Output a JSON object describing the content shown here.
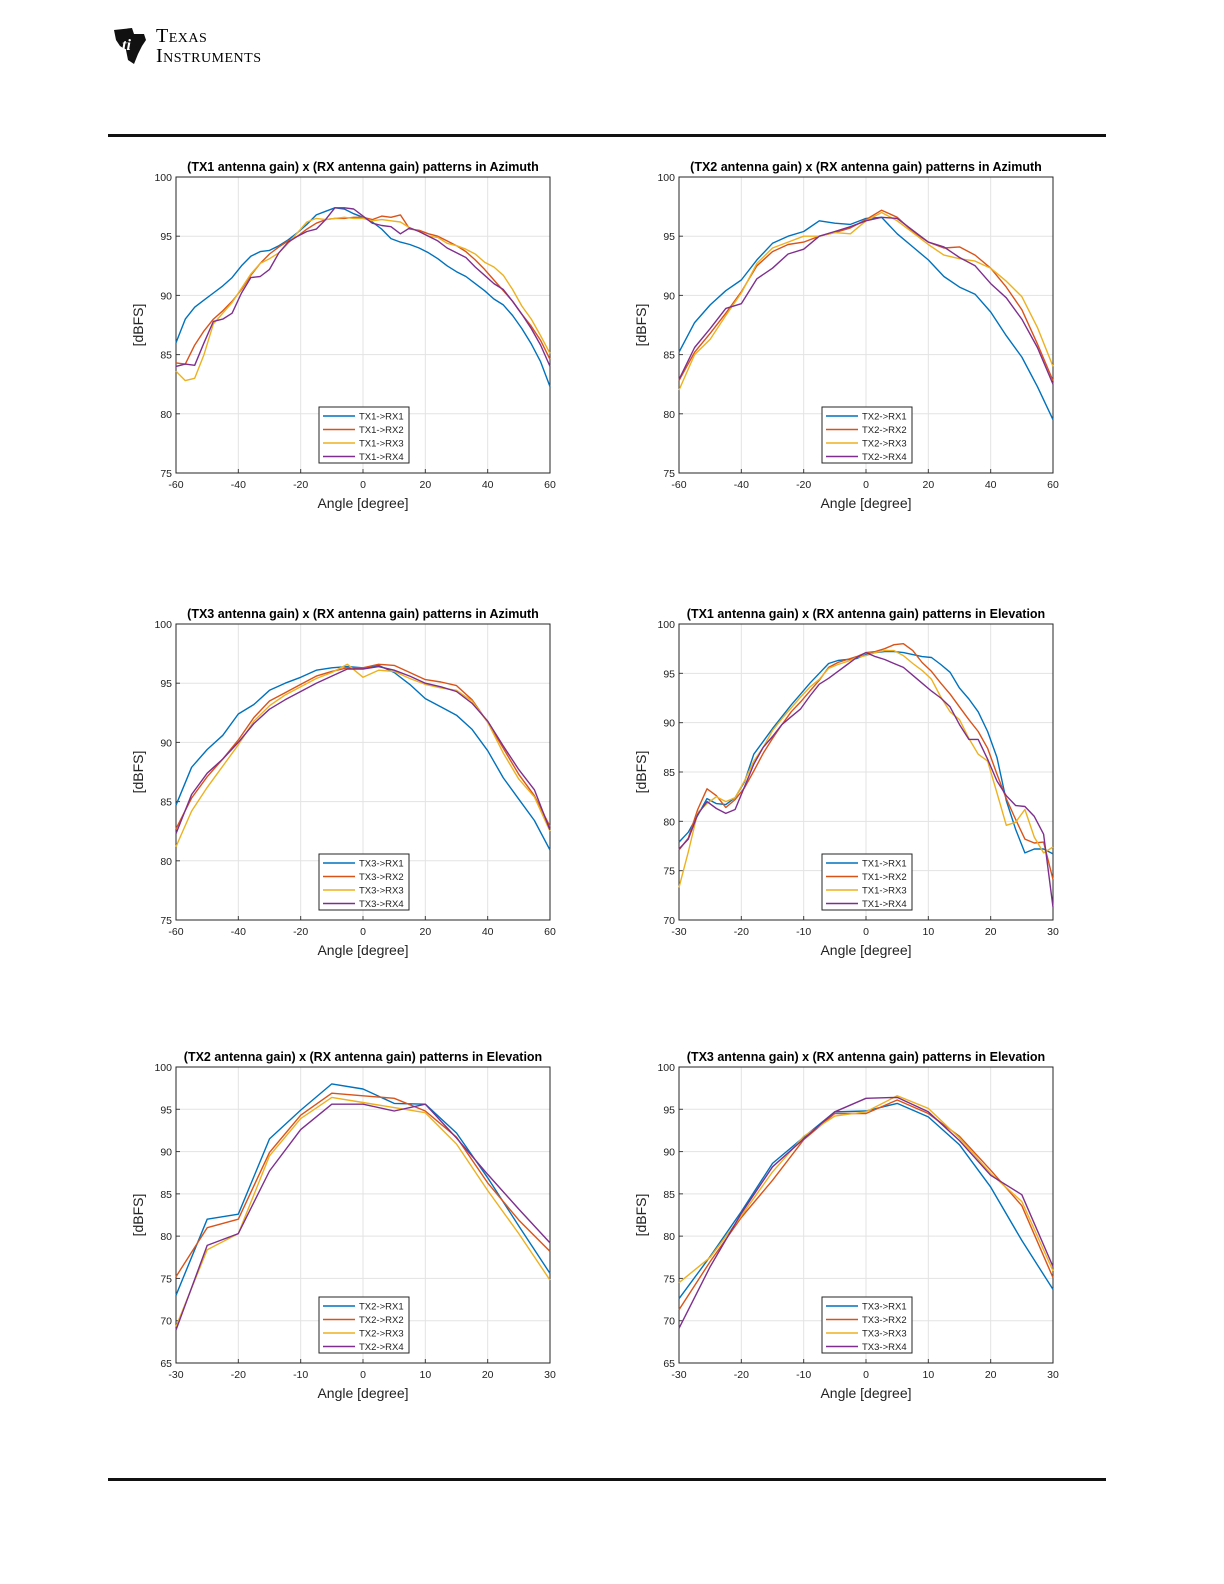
{
  "header": {
    "logo_line1": "Texas",
    "logo_line2": "Instruments"
  },
  "colors": [
    "#0072BD",
    "#D95319",
    "#EDB120",
    "#7E2F8E"
  ],
  "chart_data": [
    {
      "type": "line",
      "title": "(TX1 antenna gain) x (RX antenna gain) patterns in Azimuth",
      "xlabel": "Angle [degree]",
      "ylabel": "[dBFS]",
      "xlim": [
        -60,
        60
      ],
      "ylim": [
        75,
        100
      ],
      "xticks": [
        -60,
        -40,
        -20,
        0,
        20,
        40,
        60
      ],
      "yticks": [
        75,
        80,
        85,
        90,
        95,
        100
      ],
      "grid": true,
      "legend_position": "bottom-center",
      "x": [
        -60,
        -57,
        -54,
        -51,
        -48,
        -45,
        -42,
        -39,
        -36,
        -33,
        -30,
        -27,
        -24,
        -21,
        -18,
        -15,
        -12,
        -9,
        -6,
        -3,
        0,
        3,
        6,
        9,
        12,
        15,
        18,
        21,
        24,
        27,
        30,
        33,
        36,
        39,
        42,
        45,
        48,
        51,
        54,
        57,
        60
      ],
      "series": [
        {
          "name": "TX1->RX1",
          "values": [
            86,
            88,
            89,
            89.6,
            90.2,
            90.8,
            91.5,
            92.5,
            93.3,
            93.7,
            93.8,
            94.2,
            94.7,
            95.3,
            96,
            96.8,
            97.1,
            97.4,
            97.3,
            96.9,
            96.6,
            96.2,
            95.6,
            94.8,
            94.5,
            94.3,
            94,
            93.6,
            93.1,
            92.5,
            92,
            91.6,
            91,
            90.4,
            89.7,
            89.2,
            88.3,
            87.2,
            85.9,
            84.4,
            82.3
          ]
        },
        {
          "name": "TX1->RX2",
          "values": [
            84.3,
            84.2,
            85.8,
            87,
            88,
            88.7,
            89.5,
            90.5,
            91.7,
            92.7,
            93.5,
            94.1,
            94.6,
            95,
            95.6,
            96.1,
            96.4,
            96.5,
            96.5,
            96.6,
            96.6,
            96.4,
            96.7,
            96.6,
            96.8,
            95.6,
            95.5,
            95.2,
            95,
            94.6,
            94.2,
            93.7,
            93,
            92.2,
            91.3,
            90.4,
            89.5,
            88.4,
            87.4,
            86.2,
            84.6
          ]
        },
        {
          "name": "TX1->RX3",
          "values": [
            83.6,
            82.8,
            83,
            85,
            87.6,
            88.5,
            89.4,
            90.6,
            91.8,
            92.7,
            93.1,
            93.6,
            94.4,
            95.3,
            96.2,
            96.5,
            96.4,
            96.5,
            96.6,
            96.5,
            96.5,
            96.3,
            96.4,
            96.3,
            96.2,
            95.7,
            95.4,
            95,
            94.9,
            94.4,
            94.2,
            93.9,
            93.5,
            92.8,
            92.4,
            91.7,
            90.5,
            89.1,
            88,
            86.6,
            85.1
          ]
        },
        {
          "name": "TX1->RX4",
          "values": [
            84,
            84.2,
            84.1,
            86,
            87.8,
            88,
            88.5,
            90.2,
            91.5,
            91.6,
            92.2,
            93.6,
            94.5,
            95,
            95.4,
            95.6,
            96.4,
            97.4,
            97.4,
            97.3,
            96.7,
            96.1,
            95.9,
            95.8,
            95.2,
            95.7,
            95.4,
            95,
            94.6,
            94,
            93.6,
            93.2,
            92.4,
            91.7,
            91,
            90.5,
            89.5,
            88.4,
            87.2,
            85.8,
            84
          ]
        }
      ]
    },
    {
      "type": "line",
      "title": "(TX2 antenna gain) x (RX antenna gain) patterns in Azimuth",
      "xlabel": "Angle [degree]",
      "ylabel": "[dBFS]",
      "xlim": [
        -60,
        60
      ],
      "ylim": [
        75,
        100
      ],
      "xticks": [
        -60,
        -40,
        -20,
        0,
        20,
        40,
        60
      ],
      "yticks": [
        75,
        80,
        85,
        90,
        95,
        100
      ],
      "grid": true,
      "legend_position": "bottom-center",
      "x": [
        -60,
        -55,
        -50,
        -45,
        -40,
        -35,
        -30,
        -25,
        -20,
        -15,
        -10,
        -5,
        0,
        5,
        10,
        15,
        20,
        25,
        30,
        35,
        40,
        45,
        50,
        55,
        60
      ],
      "series": [
        {
          "name": "TX2->RX1",
          "values": [
            85.2,
            87.7,
            89.2,
            90.4,
            91.3,
            93,
            94.4,
            95,
            95.4,
            96.3,
            96.1,
            96,
            96.5,
            96.6,
            95.2,
            94.1,
            93,
            91.6,
            90.7,
            90.1,
            88.6,
            86.6,
            84.8,
            82.3,
            79.5
          ]
        },
        {
          "name": "TX2->RX2",
          "values": [
            82.8,
            85.2,
            86.8,
            88.5,
            90.3,
            92.5,
            93.7,
            94.3,
            94.5,
            95,
            95.3,
            95.7,
            96.4,
            97.2,
            96.6,
            95.4,
            94.5,
            94,
            94.1,
            93.4,
            92.3,
            90.7,
            88.8,
            85.9,
            82.8
          ]
        },
        {
          "name": "TX2->RX3",
          "values": [
            82,
            85,
            86.3,
            88.3,
            90.2,
            92.7,
            94,
            94.5,
            95,
            95,
            95.3,
            95.2,
            96.3,
            97,
            96.3,
            95.3,
            94.3,
            93.4,
            93.1,
            92.9,
            92.3,
            91.2,
            89.9,
            87.3,
            84
          ]
        },
        {
          "name": "TX2->RX4",
          "values": [
            82.9,
            85.6,
            87.2,
            88.9,
            89.3,
            91.4,
            92.3,
            93.5,
            93.9,
            95,
            95.4,
            95.8,
            96.3,
            96.6,
            96.5,
            95.5,
            94.5,
            94.1,
            93.2,
            92.5,
            91,
            89.8,
            88,
            85.6,
            82.5
          ]
        }
      ]
    },
    {
      "type": "line",
      "title": "(TX3 antenna gain) x (RX antenna gain) patterns in Azimuth",
      "xlabel": "Angle [degree]",
      "ylabel": "[dBFS]",
      "xlim": [
        -60,
        60
      ],
      "ylim": [
        75,
        100
      ],
      "xticks": [
        -60,
        -40,
        -20,
        0,
        20,
        40,
        60
      ],
      "yticks": [
        75,
        80,
        85,
        90,
        95,
        100
      ],
      "grid": true,
      "legend_position": "bottom-center",
      "x": [
        -60,
        -55,
        -50,
        -45,
        -40,
        -35,
        -30,
        -25,
        -20,
        -15,
        -10,
        -5,
        0,
        5,
        10,
        15,
        20,
        25,
        30,
        35,
        40,
        45,
        50,
        55,
        60
      ],
      "series": [
        {
          "name": "TX3->RX1",
          "values": [
            84.7,
            87.9,
            89.4,
            90.6,
            92.4,
            93.2,
            94.4,
            95,
            95.5,
            96.1,
            96.3,
            96.4,
            96.3,
            96.5,
            95.9,
            94.9,
            93.7,
            93,
            92.3,
            91.1,
            89.3,
            87,
            85.2,
            83.4,
            80.9
          ]
        },
        {
          "name": "TX3->RX2",
          "values": [
            82.7,
            85.3,
            87.1,
            88.6,
            90.2,
            92.1,
            93.5,
            94.2,
            94.9,
            95.6,
            96,
            96.3,
            96.3,
            96.6,
            96.5,
            95.9,
            95.3,
            95.1,
            94.8,
            93.6,
            91.7,
            89.5,
            87.3,
            85.5,
            82.9
          ]
        },
        {
          "name": "TX3->RX3",
          "values": [
            81.2,
            84.2,
            86.2,
            88,
            89.8,
            91.8,
            93.1,
            94,
            94.7,
            95.4,
            95.9,
            96.6,
            95.5,
            96.1,
            96,
            95.4,
            94.9,
            94.6,
            94.4,
            93.5,
            91.7,
            89.1,
            86.9,
            85.4,
            82.5
          ]
        },
        {
          "name": "TX3->RX4",
          "values": [
            82.3,
            85.6,
            87.4,
            88.6,
            90,
            91.6,
            92.8,
            93.6,
            94.3,
            95,
            95.6,
            96.2,
            96.2,
            96.4,
            96.1,
            95.6,
            95,
            94.7,
            94.3,
            93.3,
            91.8,
            89.7,
            87.7,
            86,
            82.6
          ]
        }
      ]
    },
    {
      "type": "line",
      "title": "(TX1 antenna gain) x (RX antenna gain) patterns in Elevation",
      "xlabel": "Angle [degree]",
      "ylabel": "[dBFS]",
      "xlim": [
        -30,
        30
      ],
      "ylim": [
        70,
        100
      ],
      "xticks": [
        -30,
        -20,
        -10,
        0,
        10,
        20,
        30
      ],
      "yticks": [
        70,
        75,
        80,
        85,
        90,
        95,
        100
      ],
      "grid": true,
      "legend_position": "bottom-center",
      "x": [
        -30,
        -28.5,
        -27,
        -25.5,
        -24,
        -22.5,
        -21,
        -19.5,
        -18,
        -16.5,
        -15,
        -13.5,
        -12,
        -10.5,
        -9,
        -7.5,
        -6,
        -4.5,
        -3,
        -1.5,
        0,
        1.5,
        3,
        4.5,
        6,
        7.5,
        9,
        10.5,
        12,
        13.5,
        15,
        16.5,
        18,
        19.5,
        21,
        22.5,
        24,
        25.5,
        27,
        28.5,
        30
      ],
      "series": [
        {
          "name": "TX1->RX1",
          "values": [
            77.9,
            78.9,
            80.6,
            82.3,
            81.8,
            81.7,
            82.4,
            84,
            86.8,
            88.1,
            89.4,
            90.6,
            91.8,
            92.9,
            94,
            95,
            96,
            96.3,
            96.4,
            96.5,
            96.9,
            97.1,
            97.2,
            97.2,
            97.1,
            96.9,
            96.7,
            96.6,
            95.9,
            95.1,
            93.5,
            92.4,
            91.1,
            89.1,
            86.5,
            82.1,
            79.2,
            76.8,
            77.2,
            77.2,
            76.7
          ]
        },
        {
          "name": "TX1->RX2",
          "values": [
            77.1,
            78.3,
            81.2,
            83.3,
            82.6,
            81.4,
            82.2,
            83.4,
            85.1,
            86.9,
            88.4,
            89.8,
            91.1,
            92.1,
            93.2,
            94.3,
            95.6,
            96.1,
            96.4,
            96.7,
            97.1,
            97.2,
            97.5,
            97.9,
            98,
            97.3,
            96.1,
            95.2,
            94,
            92.9,
            91.6,
            90.3,
            89.1,
            87.4,
            84.8,
            82.3,
            80.2,
            78.2,
            77.8,
            77.9,
            74.1
          ]
        },
        {
          "name": "TX1->RX3",
          "values": [
            73.3,
            76.9,
            80.9,
            81.8,
            82.5,
            82,
            82.4,
            84.1,
            86.1,
            87.5,
            89.2,
            90.4,
            91.5,
            92.6,
            93.6,
            94.4,
            95.5,
            95.9,
            96.2,
            96.6,
            96.8,
            97.1,
            97.3,
            97.3,
            96.8,
            96,
            95.3,
            94.4,
            92.6,
            91.1,
            90.3,
            88.4,
            86.8,
            86.1,
            82.9,
            79.6,
            79.9,
            81.2,
            78.4,
            76.8,
            77.4
          ]
        },
        {
          "name": "TX1->RX4",
          "values": [
            77.2,
            78.2,
            80.7,
            82,
            81.3,
            80.8,
            81.2,
            83.5,
            85.8,
            87.5,
            88.6,
            89.8,
            90.6,
            91.4,
            92.7,
            93.9,
            94.5,
            95.2,
            95.9,
            96.6,
            97.1,
            96.7,
            96.4,
            96,
            95.6,
            94.8,
            94,
            93.2,
            92.5,
            91.6,
            89.8,
            88.3,
            88.3,
            86.3,
            84.1,
            82.6,
            81.6,
            81.5,
            80.5,
            78.7,
            71.3
          ]
        }
      ]
    },
    {
      "type": "line",
      "title": "(TX2 antenna gain) x (RX antenna gain) patterns in Elevation",
      "xlabel": "Angle [degree]",
      "ylabel": "[dBFS]",
      "xlim": [
        -30,
        30
      ],
      "ylim": [
        65,
        100
      ],
      "xticks": [
        -30,
        -20,
        -10,
        0,
        10,
        20,
        30
      ],
      "yticks": [
        65,
        70,
        75,
        80,
        85,
        90,
        95,
        100
      ],
      "grid": true,
      "legend_position": "bottom-center",
      "x": [
        -30,
        -25,
        -20,
        -15,
        -10,
        -5,
        0,
        5,
        10,
        15,
        20,
        25,
        30
      ],
      "series": [
        {
          "name": "TX2->RX1",
          "values": [
            73,
            82,
            82.6,
            91.5,
            94.9,
            98,
            97.4,
            95.7,
            95.6,
            92.2,
            86.9,
            81.2,
            75.6
          ]
        },
        {
          "name": "TX2->RX2",
          "values": [
            75.2,
            81,
            82,
            89.9,
            94.3,
            96.9,
            96.6,
            96.3,
            94.8,
            91.7,
            86.3,
            81.9,
            78.2
          ]
        },
        {
          "name": "TX2->RX3",
          "values": [
            69.3,
            78.4,
            80.3,
            89.5,
            93.9,
            96.4,
            95.8,
            95.2,
            94.6,
            90.9,
            85.4,
            80.3,
            74.8
          ]
        },
        {
          "name": "TX2->RX4",
          "values": [
            68.9,
            78.9,
            80.3,
            87.7,
            92.6,
            95.6,
            95.6,
            94.8,
            95.6,
            91.6,
            87.3,
            83.2,
            79.2
          ]
        }
      ]
    },
    {
      "type": "line",
      "title": "(TX3 antenna gain) x (RX antenna gain) patterns in Elevation",
      "xlabel": "Angle [degree]",
      "ylabel": "[dBFS]",
      "xlim": [
        -30,
        30
      ],
      "ylim": [
        65,
        100
      ],
      "xticks": [
        -30,
        -20,
        -10,
        0,
        10,
        20,
        30
      ],
      "yticks": [
        65,
        70,
        75,
        80,
        85,
        90,
        95,
        100
      ],
      "grid": true,
      "legend_position": "bottom-center",
      "x": [
        -30,
        -25,
        -20,
        -15,
        -10,
        -5,
        0,
        5,
        10,
        15,
        20,
        25,
        30
      ],
      "series": [
        {
          "name": "TX3->RX1",
          "values": [
            72.6,
            77.6,
            82.9,
            88.6,
            91.7,
            94.7,
            94.8,
            95.7,
            94.1,
            90.8,
            85.8,
            79.5,
            73.7
          ]
        },
        {
          "name": "TX3->RX2",
          "values": [
            71.3,
            77,
            82.2,
            86.6,
            91.4,
            94.5,
            94.5,
            96.1,
            94.5,
            91.8,
            87.8,
            83.6,
            75.1
          ]
        },
        {
          "name": "TX3->RX3",
          "values": [
            74.5,
            77.5,
            82.4,
            87.6,
            91.8,
            94.2,
            94.7,
            96.6,
            95.1,
            91.6,
            87.4,
            84.1,
            75.9
          ]
        },
        {
          "name": "TX3->RX4",
          "values": [
            69.1,
            76.4,
            82.7,
            88.2,
            91.5,
            94.7,
            96.3,
            96.4,
            94.7,
            91.3,
            87.2,
            84.9,
            76.4
          ]
        }
      ]
    }
  ]
}
